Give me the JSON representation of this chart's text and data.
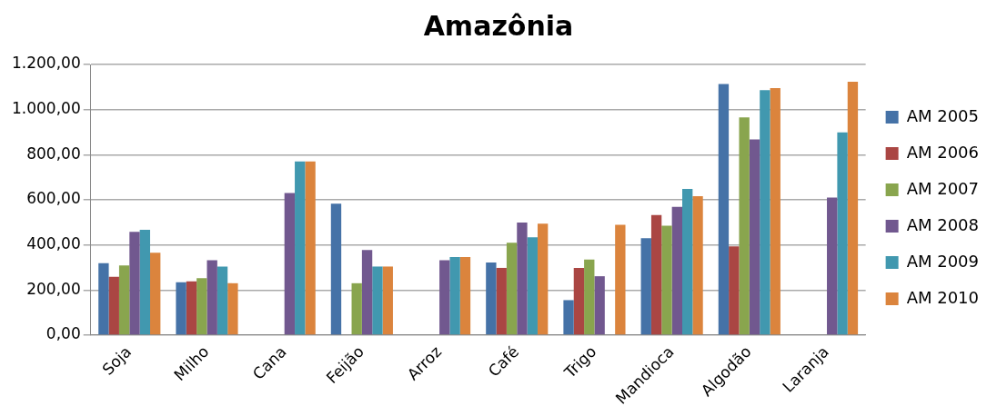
{
  "chart_data": {
    "type": "bar",
    "title": "Amazônia",
    "categories": [
      "Soja",
      "Milho",
      "Cana",
      "Feijão",
      "Arroz",
      "Café",
      "Trigo",
      "Mandioca",
      "Algodão",
      "Laranja"
    ],
    "series": [
      {
        "name": "AM 2005",
        "color": "#4572a7",
        "values": [
          319,
          234,
          null,
          583,
          null,
          322,
          155,
          430,
          1113,
          null
        ]
      },
      {
        "name": "AM 2006",
        "color": "#aa4643",
        "values": [
          258,
          238,
          null,
          null,
          null,
          298,
          298,
          532,
          393,
          null
        ]
      },
      {
        "name": "AM 2007",
        "color": "#89a54e",
        "values": [
          309,
          252,
          null,
          230,
          null,
          410,
          335,
          485,
          965,
          null
        ]
      },
      {
        "name": "AM 2008",
        "color": "#71588f",
        "values": [
          458,
          332,
          630,
          377,
          332,
          499,
          261,
          569,
          868,
          610
        ]
      },
      {
        "name": "AM 2009",
        "color": "#4198af",
        "values": [
          467,
          304,
          770,
          304,
          346,
          434,
          null,
          648,
          1086,
          899
        ]
      },
      {
        "name": "AM 2010",
        "color": "#db843d",
        "values": [
          365,
          230,
          770,
          304,
          346,
          494,
          489,
          616,
          1095,
          1123
        ]
      }
    ],
    "ylim": [
      0,
      1200
    ],
    "yticks": [
      {
        "value": 0,
        "label": "0,00"
      },
      {
        "value": 200,
        "label": "200,00"
      },
      {
        "value": 400,
        "label": "400,00"
      },
      {
        "value": 600,
        "label": "600,00"
      },
      {
        "value": 800,
        "label": "800,00"
      },
      {
        "value": 1000,
        "label": "1.000,00"
      },
      {
        "value": 1200,
        "label": "1.200,00"
      }
    ],
    "grid": "y",
    "legend": "right"
  }
}
